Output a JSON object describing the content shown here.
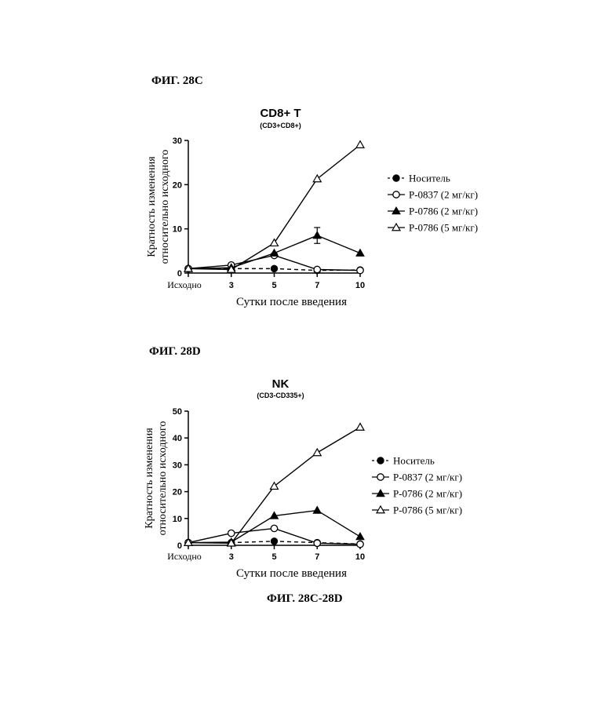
{
  "labels": {
    "fig_c": "ФИГ. 28C",
    "fig_d": "ФИГ. 28D",
    "fig_cd": "ФИГ. 28C-28D"
  },
  "chart_data": [
    {
      "type": "line",
      "title": "CD8+ T",
      "subtitle": "(CD3+CD8+)",
      "xlabel": "Сутки после введения",
      "ylabel": [
        "Кратность изменения",
        "относительно исходного"
      ],
      "x_ticks": [
        "Исходно",
        "3",
        "5",
        "7",
        "10"
      ],
      "x": [
        0,
        3,
        5,
        7,
        10
      ],
      "y_ticks": [
        0,
        10,
        20,
        30
      ],
      "ylim": [
        0,
        30
      ],
      "series": [
        {
          "name": "Носитель",
          "marker": "filled-circle",
          "dashed": true,
          "values": [
            1,
            1,
            1,
            0.6,
            0.7
          ]
        },
        {
          "name": "P-0837 (2 мг/кг)",
          "marker": "open-circle",
          "dashed": false,
          "values": [
            1,
            1.8,
            4,
            0.8,
            0.6
          ]
        },
        {
          "name": "P-0786 (2 мг/кг)",
          "marker": "filled-triangle",
          "dashed": false,
          "values": [
            1,
            1.2,
            4.5,
            8.5,
            4.5
          ],
          "error": [
            0,
            0,
            0,
            1.8,
            0
          ]
        },
        {
          "name": "P-0786 (5 мг/кг)",
          "marker": "open-triangle",
          "dashed": false,
          "values": [
            1,
            0.8,
            6.8,
            21.3,
            29
          ]
        }
      ]
    },
    {
      "type": "line",
      "title": "NK",
      "subtitle": "(CD3-CD335+)",
      "xlabel": "Сутки после введения",
      "ylabel": [
        "Кратность изменения",
        "относительно исходного"
      ],
      "x_ticks": [
        "Исходно",
        "3",
        "5",
        "7",
        "10"
      ],
      "x": [
        0,
        3,
        5,
        7,
        10
      ],
      "y_ticks": [
        0,
        10,
        20,
        30,
        40,
        50
      ],
      "ylim": [
        0,
        50
      ],
      "series": [
        {
          "name": "Носитель",
          "marker": "filled-circle",
          "dashed": true,
          "values": [
            1,
            1,
            1.5,
            1,
            0.5
          ]
        },
        {
          "name": "P-0837 (2 мг/кг)",
          "marker": "open-circle",
          "dashed": false,
          "values": [
            1,
            4.5,
            6.3,
            0.8,
            0.4
          ]
        },
        {
          "name": "P-0786 (2 мг/кг)",
          "marker": "filled-triangle",
          "dashed": false,
          "values": [
            1,
            1.2,
            11,
            13,
            3.2
          ]
        },
        {
          "name": "P-0786 (5 мг/кг)",
          "marker": "open-triangle",
          "dashed": false,
          "values": [
            1,
            0.8,
            22,
            34.5,
            44
          ]
        }
      ]
    }
  ]
}
